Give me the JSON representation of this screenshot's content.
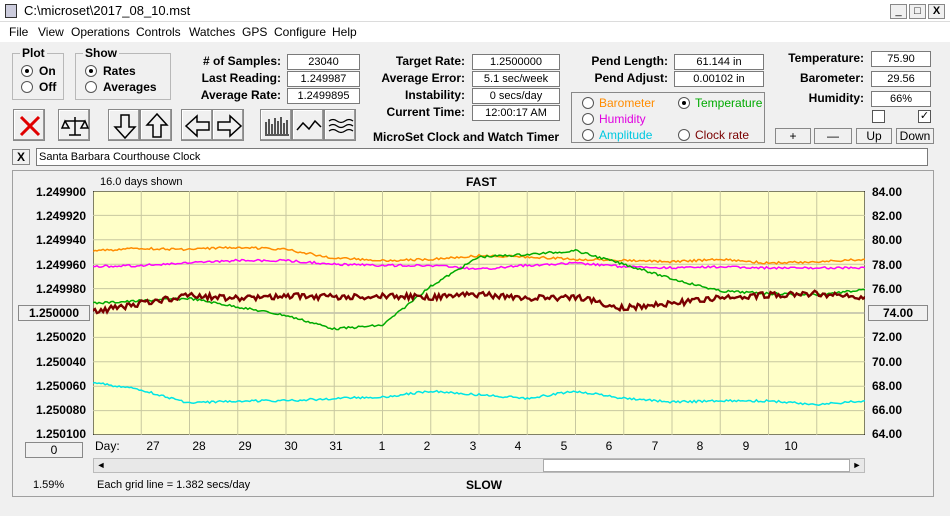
{
  "window": {
    "title": "C:\\microset\\2017_08_10.mst",
    "minimize": "_",
    "maximize": "□",
    "close": "X"
  },
  "menu": [
    "File",
    "View",
    "Operations",
    "Controls",
    "Watches",
    "GPS",
    "Configure",
    "Help"
  ],
  "plot_group": {
    "title": "Plot",
    "on": "On",
    "off": "Off",
    "selected": "On"
  },
  "show_group": {
    "title": "Show",
    "rates": "Rates",
    "averages": "Averages",
    "selected": "Rates"
  },
  "stats": {
    "samples_label": "# of Samples:",
    "samples": "23040",
    "last_label": "Last Reading:",
    "last": "1.249987",
    "avg_label": "Average Rate:",
    "avg": "1.2499895"
  },
  "rates": {
    "target_label": "Target Rate:",
    "target": "1.2500000",
    "error_label": "Average Error:",
    "error": "5.1 sec/week",
    "instab_label": "Instability:",
    "instab": "0 secs/day",
    "time_label": "Current Time:",
    "time": "12:00:17 AM"
  },
  "app_name": "MicroSet Clock and Watch Timer",
  "pend": {
    "length_label": "Pend Length:",
    "length": "61.144 in",
    "adjust_label": "Pend Adjust:",
    "adjust": "0.00102 in"
  },
  "env": {
    "temp_label": "Temperature:",
    "temp": "75.90",
    "baro_label": "Barometer:",
    "baro": "29.56",
    "hum_label": "Humidity:",
    "hum": "66%"
  },
  "aux": {
    "barometer": "Barometer",
    "temperature": "Temperature",
    "humidity": "Humidity",
    "amplitude": "Amplitude",
    "clock_rate": "Clock rate",
    "selected": "Temperature"
  },
  "scale_buttons": {
    "plus": "+",
    "minus": "—",
    "up": "Up",
    "down": "Down"
  },
  "clock_name": "Santa Barbara Courthouse Clock",
  "name_close": "X",
  "colors": {
    "plot_bg": "#ffffc8",
    "rate": "#7a0000",
    "temperature": "#00aa00",
    "barometer": "#ff8c00",
    "humidity": "#ff00ff",
    "amplitude": "#00e5e5"
  },
  "plot": {
    "days_shown": "16.0 days shown",
    "fast": "FAST",
    "slow": "SLOW",
    "left_ticks": [
      "1.249900",
      "1.249920",
      "1.249940",
      "1.249960",
      "1.249980",
      "1.250000",
      "1.250020",
      "1.250040",
      "1.250060",
      "1.250080",
      "1.250100"
    ],
    "right_ticks": [
      "84.00",
      "82.00",
      "80.00",
      "78.00",
      "76.00",
      "74.00",
      "72.00",
      "70.00",
      "68.00",
      "66.00",
      "64.00"
    ],
    "center_left": "1.250000",
    "center_right": "74.00",
    "day_label": "Day:",
    "days": [
      "27",
      "28",
      "29",
      "30",
      "31",
      "1",
      "2",
      "3",
      "4",
      "5",
      "6",
      "7",
      "8",
      "9",
      "10"
    ],
    "zero_button": "0",
    "percent": "1.59%",
    "grid_note": "Each grid line = 1.382 secs/day",
    "scroll_left": "◄",
    "scroll_right": "►"
  },
  "chart_data": {
    "type": "line",
    "x_unit": "days",
    "y_left_range": [
      1.2499,
      1.2501
    ],
    "y_right_range": [
      64,
      84
    ],
    "grid": true,
    "series": [
      {
        "name": "Rate",
        "axis": "left",
        "x": [
          0,
          1,
          2,
          3,
          4,
          5,
          6,
          7,
          8,
          9,
          10,
          11,
          12,
          13,
          14,
          15,
          16
        ],
        "y": [
          1.249999,
          1.249992,
          1.249986,
          1.249988,
          1.249986,
          1.249987,
          1.249986,
          1.249987,
          1.249985,
          1.249988,
          1.249987,
          1.249996,
          1.249992,
          1.249988,
          1.249985,
          1.249984,
          1.249987
        ]
      },
      {
        "name": "Temperature",
        "axis": "right",
        "x": [
          0,
          1,
          2,
          3,
          4,
          5,
          6,
          7,
          8,
          9,
          10,
          11,
          12,
          13,
          14,
          15,
          16
        ],
        "y": [
          74.8,
          75.0,
          75.2,
          74.5,
          73.8,
          72.7,
          73.0,
          76.2,
          78.6,
          78.8,
          79.1,
          78.0,
          76.8,
          75.8,
          75.6,
          75.5,
          75.9
        ]
      },
      {
        "name": "Barometer",
        "axis": "right",
        "x": [
          0,
          1,
          2,
          3,
          4,
          5,
          6,
          7,
          8,
          9,
          10,
          11,
          12,
          13,
          14,
          15,
          16
        ],
        "y": [
          79.1,
          79.3,
          79.2,
          79.4,
          79.2,
          78.5,
          78.3,
          78.4,
          78.7,
          78.6,
          78.4,
          78.3,
          78.2,
          78.4,
          78.1,
          78.2,
          78.4
        ]
      },
      {
        "name": "Humidity",
        "axis": "right",
        "x": [
          0,
          1,
          2,
          3,
          4,
          5,
          6,
          7,
          8,
          9,
          10,
          11,
          12,
          13,
          14,
          15,
          16
        ],
        "y": [
          77.8,
          77.9,
          78.1,
          78.3,
          78.3,
          78.0,
          77.9,
          77.9,
          77.6,
          77.9,
          78.1,
          77.8,
          77.7,
          77.8,
          77.7,
          77.7,
          77.7
        ]
      },
      {
        "name": "Amplitude",
        "axis": "right",
        "x": [
          0,
          1,
          2,
          3,
          4,
          5,
          6,
          7,
          8,
          9,
          10,
          11,
          12,
          13,
          14,
          15,
          16
        ],
        "y": [
          68.3,
          67.7,
          66.6,
          66.8,
          66.8,
          67.0,
          67.1,
          67.6,
          67.3,
          67.0,
          67.6,
          67.0,
          66.7,
          66.8,
          66.8,
          66.5,
          66.8
        ]
      }
    ]
  }
}
